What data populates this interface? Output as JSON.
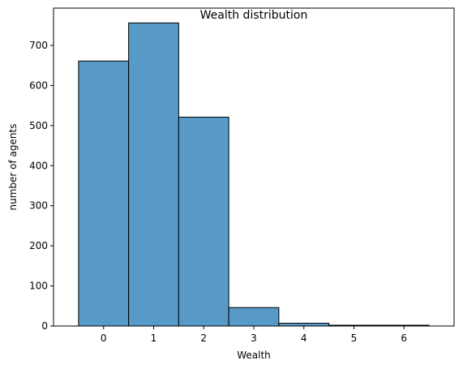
{
  "chart_data": {
    "type": "bar",
    "title": "Wealth distribution",
    "xlabel": "Wealth",
    "ylabel": "number of agents",
    "categories": [
      "0",
      "1",
      "2",
      "3",
      "4",
      "5",
      "6"
    ],
    "values": [
      661,
      756,
      521,
      46,
      7,
      2,
      2
    ],
    "xlim": [
      -1,
      7
    ],
    "ylim": [
      0,
      793
    ],
    "xticks": [
      "0",
      "1",
      "2",
      "3",
      "4",
      "5",
      "6"
    ],
    "yticks": [
      "0",
      "100",
      "200",
      "300",
      "400",
      "500",
      "600",
      "700"
    ],
    "grid": false,
    "legend": "none",
    "bar_color": "#5799c7",
    "edge_color": "#000000"
  }
}
